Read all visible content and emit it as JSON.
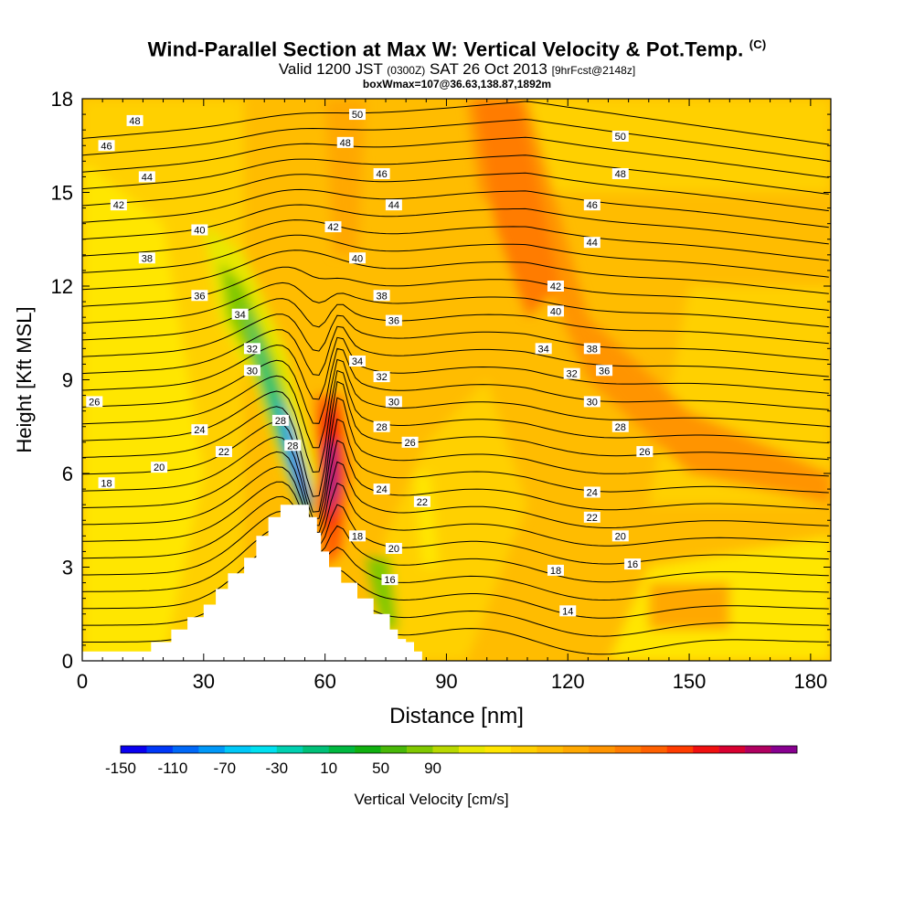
{
  "header": {
    "title": "Wind-Parallel Section at Max W: Vertical Velocity & Pot.Temp.",
    "copyright": "(C)",
    "valid_prefix": "Valid 1200 JST",
    "valid_utc": "(0300Z)",
    "valid_date": "SAT 26 Oct 2013",
    "forecast": "[9hrFcst@2148z]",
    "box_info": "boxWmax=107@36.63,138.87,1892m"
  },
  "chart_data": {
    "type": "heatmap",
    "xlabel": "Distance [nm]",
    "ylabel": "Height [Kft MSL]",
    "xlim": [
      0,
      185
    ],
    "ylim": [
      0,
      18
    ],
    "x_ticks": [
      0,
      30,
      60,
      90,
      120,
      150,
      180
    ],
    "y_ticks": [
      0,
      3,
      6,
      9,
      12,
      15,
      18
    ],
    "colorbar": {
      "label": "Vertical Velocity [cm/s]",
      "tick_labels": [
        -150,
        -110,
        -70,
        -30,
        10,
        50,
        90
      ],
      "colors": [
        "#0a00f0",
        "#0038f8",
        "#0068f8",
        "#0098f8",
        "#00c8f8",
        "#00e0f0",
        "#00d0b0",
        "#00c078",
        "#00b840",
        "#10b010",
        "#48b808",
        "#80c800",
        "#b8d800",
        "#e8e800",
        "#ffe600",
        "#ffd000",
        "#ffbc00",
        "#ffa800",
        "#ff9400",
        "#ff7c00",
        "#ff6000",
        "#ff3c00",
        "#f01010",
        "#d80030",
        "#b00060",
        "#880090"
      ]
    },
    "terrain": [
      [
        0,
        0.3
      ],
      [
        10,
        0.3
      ],
      [
        17,
        0.6
      ],
      [
        22,
        1.0
      ],
      [
        26,
        1.4
      ],
      [
        30,
        1.8
      ],
      [
        33,
        2.3
      ],
      [
        36,
        2.8
      ],
      [
        40,
        3.3
      ],
      [
        43,
        4.0
      ],
      [
        46,
        4.6
      ],
      [
        49,
        5.0
      ],
      [
        54,
        5.0
      ],
      [
        56,
        4.6
      ],
      [
        58,
        4.1
      ],
      [
        59,
        3.5
      ],
      [
        61,
        3.0
      ],
      [
        64,
        2.5
      ],
      [
        68,
        2.0
      ],
      [
        72,
        1.5
      ],
      [
        76,
        1.0
      ],
      [
        78,
        0.7
      ],
      [
        80,
        0.6
      ],
      [
        82,
        0.3
      ],
      [
        84,
        0.3
      ]
    ],
    "theta_labels": [
      {
        "v": "48",
        "x": 13,
        "y": 17.3
      },
      {
        "v": "46",
        "x": 6,
        "y": 16.5
      },
      {
        "v": "44",
        "x": 16,
        "y": 15.5
      },
      {
        "v": "42",
        "x": 9,
        "y": 14.6
      },
      {
        "v": "40",
        "x": 29,
        "y": 13.8
      },
      {
        "v": "38",
        "x": 16,
        "y": 12.9
      },
      {
        "v": "36",
        "x": 29,
        "y": 11.7
      },
      {
        "v": "34",
        "x": 39,
        "y": 11.1
      },
      {
        "v": "32",
        "x": 42,
        "y": 10.0
      },
      {
        "v": "30",
        "x": 42,
        "y": 9.3
      },
      {
        "v": "26",
        "x": 3,
        "y": 8.3
      },
      {
        "v": "28",
        "x": 49,
        "y": 7.7
      },
      {
        "v": "28",
        "x": 52,
        "y": 6.9
      },
      {
        "v": "24",
        "x": 29,
        "y": 7.4
      },
      {
        "v": "22",
        "x": 35,
        "y": 6.7
      },
      {
        "v": "20",
        "x": 19,
        "y": 6.2
      },
      {
        "v": "18",
        "x": 6,
        "y": 5.7
      },
      {
        "v": "50",
        "x": 68,
        "y": 17.5
      },
      {
        "v": "48",
        "x": 65,
        "y": 16.6
      },
      {
        "v": "46",
        "x": 74,
        "y": 15.6
      },
      {
        "v": "44",
        "x": 77,
        "y": 14.6
      },
      {
        "v": "42",
        "x": 62,
        "y": 13.9
      },
      {
        "v": "40",
        "x": 68,
        "y": 12.9
      },
      {
        "v": "38",
        "x": 74,
        "y": 11.7
      },
      {
        "v": "36",
        "x": 77,
        "y": 10.9
      },
      {
        "v": "34",
        "x": 68,
        "y": 9.6
      },
      {
        "v": "32",
        "x": 74,
        "y": 9.1
      },
      {
        "v": "30",
        "x": 77,
        "y": 8.3
      },
      {
        "v": "28",
        "x": 74,
        "y": 7.5
      },
      {
        "v": "26",
        "x": 81,
        "y": 7.0
      },
      {
        "v": "24",
        "x": 74,
        "y": 5.5
      },
      {
        "v": "22",
        "x": 84,
        "y": 5.1
      },
      {
        "v": "18",
        "x": 68,
        "y": 4.0
      },
      {
        "v": "20",
        "x": 77,
        "y": 3.6
      },
      {
        "v": "16",
        "x": 76,
        "y": 2.6
      },
      {
        "v": "50",
        "x": 133,
        "y": 16.8
      },
      {
        "v": "48",
        "x": 133,
        "y": 15.6
      },
      {
        "v": "46",
        "x": 126,
        "y": 14.6
      },
      {
        "v": "44",
        "x": 126,
        "y": 13.4
      },
      {
        "v": "42",
        "x": 117,
        "y": 12.0
      },
      {
        "v": "40",
        "x": 117,
        "y": 11.2
      },
      {
        "v": "38",
        "x": 126,
        "y": 10.0
      },
      {
        "v": "36",
        "x": 129,
        "y": 9.3
      },
      {
        "v": "34",
        "x": 114,
        "y": 10.0
      },
      {
        "v": "32",
        "x": 121,
        "y": 9.2
      },
      {
        "v": "30",
        "x": 126,
        "y": 8.3
      },
      {
        "v": "28",
        "x": 133,
        "y": 7.5
      },
      {
        "v": "26",
        "x": 139,
        "y": 6.7
      },
      {
        "v": "24",
        "x": 126,
        "y": 5.4
      },
      {
        "v": "22",
        "x": 126,
        "y": 4.6
      },
      {
        "v": "20",
        "x": 133,
        "y": 4.0
      },
      {
        "v": "18",
        "x": 117,
        "y": 2.9
      },
      {
        "v": "16",
        "x": 136,
        "y": 3.1
      },
      {
        "v": "14",
        "x": 120,
        "y": 1.6
      }
    ]
  }
}
